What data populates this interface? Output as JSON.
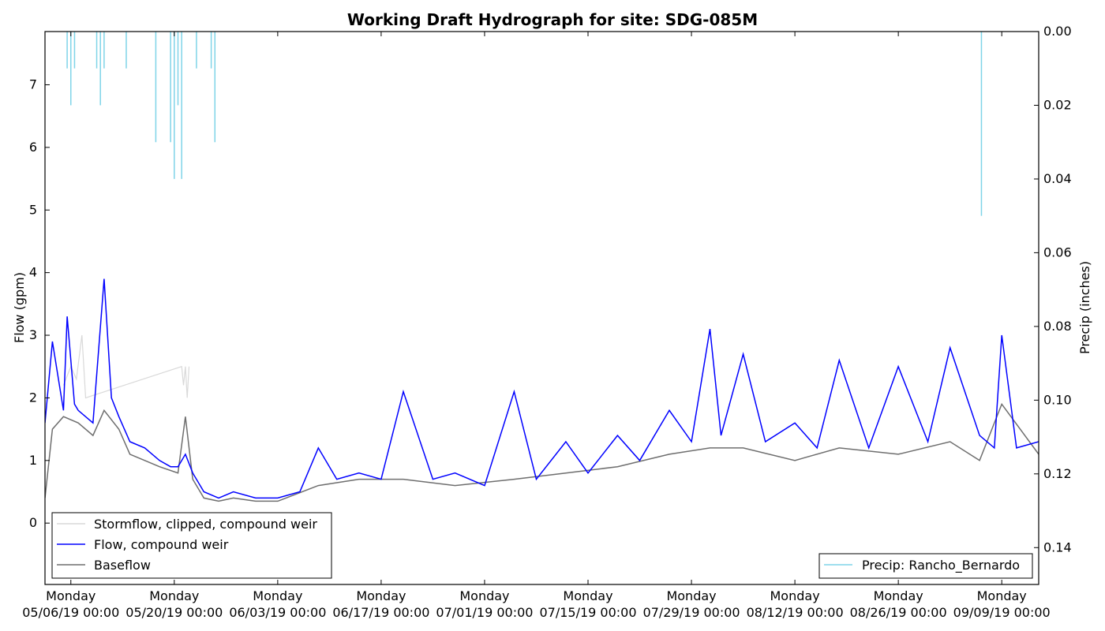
{
  "chart_data": {
    "type": "line",
    "title": "Working Draft Hydrograph for site: SDG-085M",
    "x_axis": {
      "range": [
        "05/02/19 12:00",
        "09/14/19 00:00"
      ],
      "ticks": [
        {
          "top": "Monday",
          "bottom": "05/06/19 00:00"
        },
        {
          "top": "Monday",
          "bottom": "05/20/19 00:00"
        },
        {
          "top": "Monday",
          "bottom": "06/03/19 00:00"
        },
        {
          "top": "Monday",
          "bottom": "06/17/19 00:00"
        },
        {
          "top": "Monday",
          "bottom": "07/01/19 00:00"
        },
        {
          "top": "Monday",
          "bottom": "07/15/19 00:00"
        },
        {
          "top": "Monday",
          "bottom": "07/29/19 00:00"
        },
        {
          "top": "Monday",
          "bottom": "08/12/19 00:00"
        },
        {
          "top": "Monday",
          "bottom": "08/26/19 00:00"
        },
        {
          "top": "Monday",
          "bottom": "09/09/19 00:00"
        }
      ]
    },
    "y_axis_left": {
      "label": "Flow (gpm)",
      "range": [
        -0.98,
        7.85
      ],
      "ticks": [
        "0",
        "1",
        "2",
        "3",
        "4",
        "5",
        "6",
        "7"
      ]
    },
    "y_axis_right": {
      "label": "Precip (inches)",
      "range": [
        0.15,
        0.0
      ],
      "inverted": true,
      "ticks": [
        "0.00",
        "0.02",
        "0.04",
        "0.06",
        "0.08",
        "0.10",
        "0.12",
        "0.14"
      ]
    },
    "legend_left": {
      "placement": "lower-left",
      "entries": [
        "Stormflow, clipped, compound weir",
        "Flow, compound weir",
        "Baseflow"
      ]
    },
    "legend_right": {
      "placement": "lower-right",
      "entries": [
        "Precip: Rancho_Bernardo"
      ]
    },
    "colors": {
      "stormflow": "#d9d9d9",
      "flow": "#0000ff",
      "baseflow": "#6e6e6e",
      "precip": "#7fd4e8"
    },
    "series": [
      {
        "name": "Flow, compound weir",
        "x": [
          "05/02/19 12:00",
          "05/03/19 12:00",
          "05/05/19 00:00",
          "05/05/19 12:00",
          "05/06/19 12:00",
          "05/07/19 00:00",
          "05/09/19 00:00",
          "05/10/19 12:00",
          "05/11/19 12:00",
          "05/12/19 12:00",
          "05/14/19 00:00",
          "05/16/19 00:00",
          "05/18/19 00:00",
          "05/19/19 12:00",
          "05/20/19 12:00",
          "05/21/19 12:00",
          "05/22/19 12:00",
          "05/24/19 00:00",
          "05/26/19 00:00",
          "05/28/19 00:00",
          "05/31/19 00:00",
          "06/03/19 00:00",
          "06/06/19 00:00",
          "06/08/19 12:00",
          "06/11/19 00:00",
          "06/14/19 00:00",
          "06/17/19 00:00",
          "06/20/19 00:00",
          "06/24/19 00:00",
          "06/27/19 00:00",
          "07/01/19 00:00",
          "07/05/19 00:00",
          "07/08/19 00:00",
          "07/12/19 00:00",
          "07/15/19 00:00",
          "07/19/19 00:00",
          "07/22/19 00:00",
          "07/26/19 00:00",
          "07/29/19 00:00",
          "07/31/19 12:00",
          "08/02/19 00:00",
          "08/05/19 00:00",
          "08/08/19 00:00",
          "08/12/19 00:00",
          "08/15/19 00:00",
          "08/18/19 00:00",
          "08/22/19 00:00",
          "08/26/19 00:00",
          "08/30/19 00:00",
          "09/02/19 00:00",
          "09/06/19 00:00",
          "09/08/19 00:00",
          "09/09/19 00:00",
          "09/11/19 00:00",
          "09/14/19 00:00"
        ],
        "values": [
          1.6,
          2.9,
          1.8,
          3.3,
          1.9,
          1.8,
          1.6,
          3.9,
          2.0,
          1.7,
          1.3,
          1.2,
          1.0,
          0.9,
          0.9,
          1.1,
          0.8,
          0.5,
          0.4,
          0.5,
          0.4,
          0.4,
          0.5,
          1.2,
          0.7,
          0.8,
          0.7,
          2.1,
          0.7,
          0.8,
          0.6,
          2.1,
          0.7,
          1.3,
          0.8,
          1.4,
          1.0,
          1.8,
          1.3,
          3.1,
          1.4,
          2.7,
          1.3,
          1.6,
          1.2,
          2.6,
          1.2,
          2.5,
          1.3,
          2.8,
          1.4,
          1.2,
          3.0,
          1.2,
          1.3
        ]
      },
      {
        "name": "Baseflow",
        "x": [
          "05/02/19 12:00",
          "05/03/19 12:00",
          "05/05/19 00:00",
          "05/07/19 00:00",
          "05/09/19 00:00",
          "05/10/19 12:00",
          "05/12/19 12:00",
          "05/14/19 00:00",
          "05/16/19 00:00",
          "05/18/19 00:00",
          "05/20/19 12:00",
          "05/21/19 12:00",
          "05/22/19 12:00",
          "05/24/19 00:00",
          "05/26/19 00:00",
          "05/28/19 00:00",
          "05/31/19 00:00",
          "06/03/19 00:00",
          "06/08/19 12:00",
          "06/14/19 00:00",
          "06/20/19 00:00",
          "06/27/19 00:00",
          "07/05/19 00:00",
          "07/12/19 00:00",
          "07/19/19 00:00",
          "07/26/19 00:00",
          "07/31/19 12:00",
          "08/05/19 00:00",
          "08/12/19 00:00",
          "08/18/19 00:00",
          "08/26/19 00:00",
          "09/02/19 00:00",
          "09/06/19 00:00",
          "09/09/19 00:00",
          "09/14/19 00:00"
        ],
        "values": [
          0.4,
          1.5,
          1.7,
          1.6,
          1.4,
          1.8,
          1.5,
          1.1,
          1.0,
          0.9,
          0.8,
          1.7,
          0.7,
          0.4,
          0.35,
          0.4,
          0.35,
          0.35,
          0.6,
          0.7,
          0.7,
          0.6,
          0.7,
          0.8,
          0.9,
          1.1,
          1.2,
          1.2,
          1.0,
          1.2,
          1.1,
          1.3,
          1.0,
          1.9,
          1.1
        ]
      },
      {
        "name": "Stormflow, clipped, compound weir",
        "x": [
          "05/05/19 00:00",
          "05/06/19 00:00",
          "05/06/19 18:00",
          "05/07/19 12:00",
          "05/08/19 00:00",
          "05/21/19 00:00",
          "05/21/19 06:00",
          "05/21/19 12:00",
          "05/21/19 18:00",
          "05/22/19 00:00"
        ],
        "values": [
          2.2,
          2.5,
          2.3,
          3.0,
          2.0,
          2.5,
          2.2,
          2.5,
          2.0,
          2.5
        ]
      },
      {
        "name": "Precip: Rancho_Bernardo",
        "x": [
          "05/05/19 12:00",
          "05/06/19 00:00",
          "05/06/19 12:00",
          "05/09/19 12:00",
          "05/10/19 00:00",
          "05/10/19 12:00",
          "05/13/19 12:00",
          "05/17/19 12:00",
          "05/19/19 12:00",
          "05/20/19 00:00",
          "05/20/19 12:00",
          "05/21/19 00:00",
          "05/23/19 00:00",
          "05/25/19 00:00",
          "05/25/19 12:00",
          "09/06/19 06:00"
        ],
        "values": [
          0.01,
          0.02,
          0.01,
          0.01,
          0.02,
          0.01,
          0.01,
          0.03,
          0.03,
          0.04,
          0.02,
          0.04,
          0.01,
          0.01,
          0.03,
          0.05
        ]
      }
    ]
  }
}
